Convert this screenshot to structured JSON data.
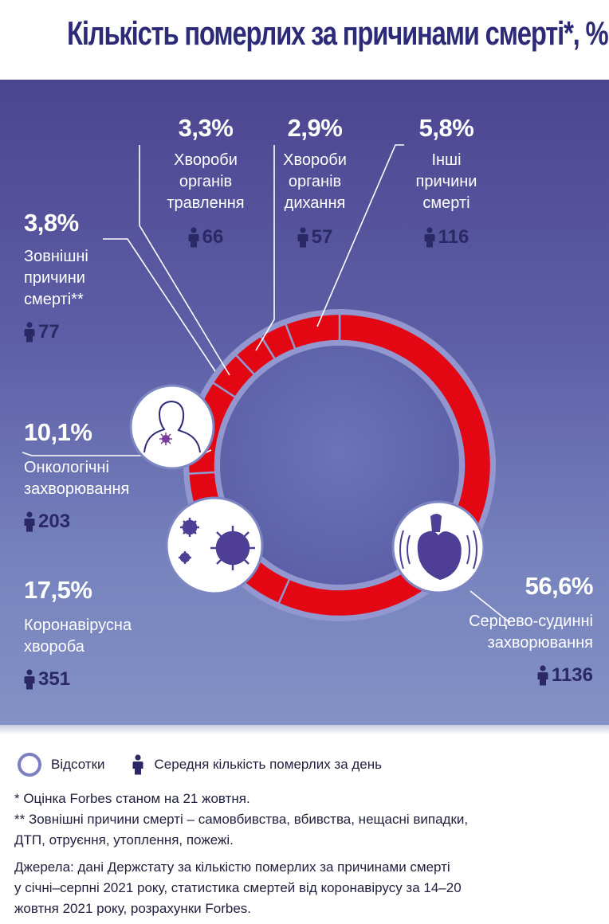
{
  "title": "Кількість померлих за причинами смерті*, %",
  "colors": {
    "ring": "#e30613",
    "ring_track": "#9297cf",
    "panel_top": "#4c458f",
    "panel_bottom": "#8491c6",
    "title": "#2d2b78",
    "count": "#2a2966"
  },
  "icons": [
    "person-icon",
    "cancer-patient-icon",
    "coronavirus-icon",
    "heart-icon"
  ],
  "chart_data": {
    "type": "pie",
    "style": "donut",
    "unit": "%",
    "categories": [
      "Серцево-судинні захворювання",
      "Коронавірусна хвороба",
      "Онкологічні захворювання",
      "Зовнішні причини смерті**",
      "Хвороби органів травлення",
      "Хвороби органів дихання",
      "Інші причини смерті"
    ],
    "values": [
      56.6,
      17.5,
      10.1,
      3.8,
      3.3,
      2.9,
      5.8
    ],
    "daily_deaths": [
      1136,
      351,
      203,
      77,
      66,
      57,
      116
    ]
  },
  "labels": {
    "digestive": {
      "pct": "3,3%",
      "l1": "Хвороби",
      "l2": "органів",
      "l3": "травлення",
      "count": "66"
    },
    "respiratory": {
      "pct": "2,9%",
      "l1": "Хвороби",
      "l2": "органів",
      "l3": "дихання",
      "count": "57"
    },
    "other": {
      "pct": "5,8%",
      "l1": "Інші",
      "l2": "причини",
      "l3": "смерті",
      "count": "116"
    },
    "external": {
      "pct": "3,8%",
      "l1": "Зовнішні",
      "l2": "причини",
      "l3": "смерті**",
      "count": "77"
    },
    "oncology": {
      "pct": "10,1%",
      "l1": "Онкологічні",
      "l2": "захворювання",
      "count": "203"
    },
    "covid": {
      "pct": "17,5%",
      "l1": "Коронавірусна",
      "l2": "хвороба",
      "count": "351"
    },
    "cardio": {
      "pct": "56,6%",
      "l1": "Серцево-судинні",
      "l2": "захворювання",
      "count": "1136"
    }
  },
  "legend": {
    "percent": "Відсотки",
    "daily": "Середня кількість померлих за день"
  },
  "notes": {
    "n1": "* Оцінка Forbes станом на 21 жовтня.",
    "n2a": "** Зовнішні причини смерті – самовбивства, вбивства, нещасні випадки,",
    "n2b": "ДТП, отруєння, утоплення, пожежі.",
    "s1": "Джерела: дані Держстату за кількістю померлих за причинами смерті",
    "s2": "у січні–серпні 2021 року, статистика смертей від коронавірусу за 14–20",
    "s3": "жовтня 2021 року, розрахунки Forbes."
  }
}
